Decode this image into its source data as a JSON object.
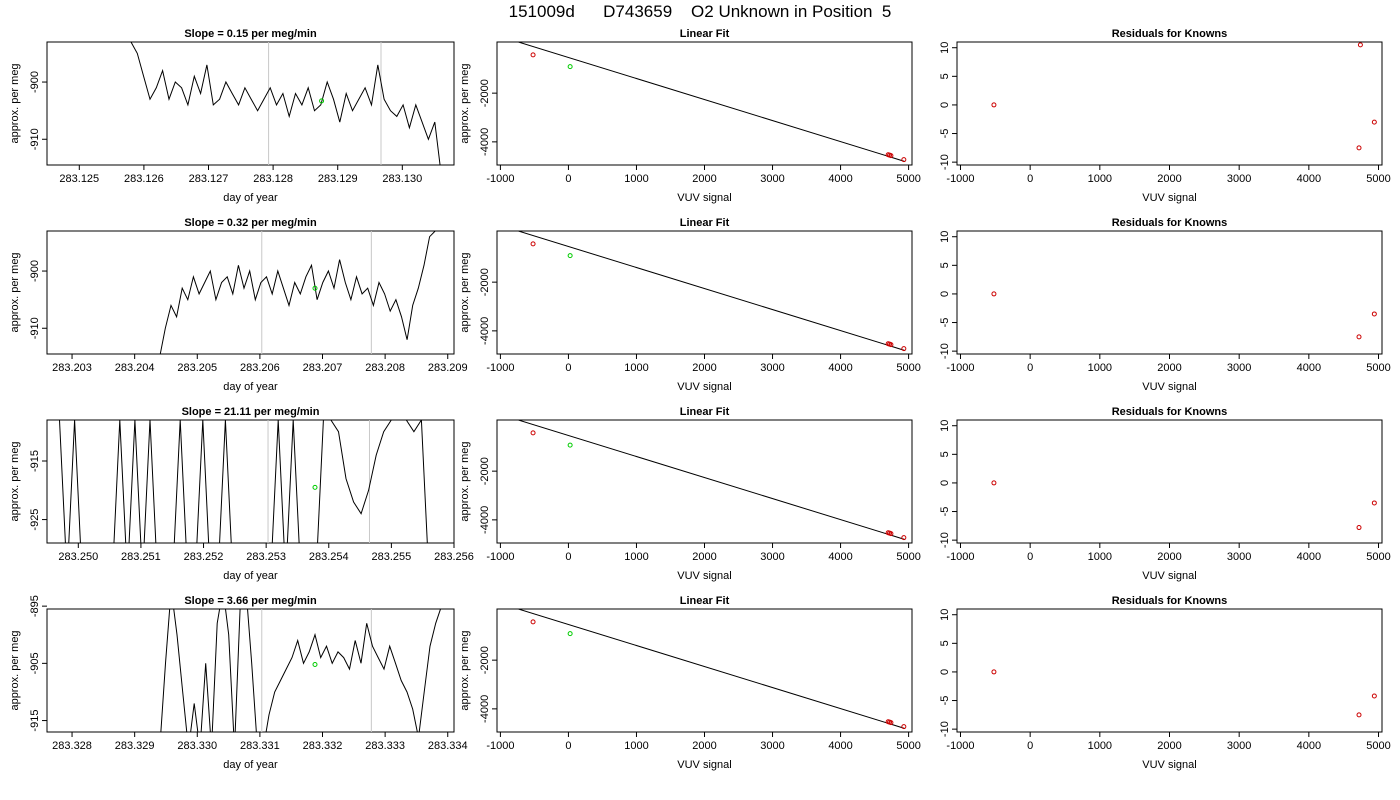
{
  "page_title": "151009d      D743659    O2 Unknown in Position  5",
  "chart_data": [
    {
      "type": "line",
      "row": 0,
      "panel": "trace",
      "title": "Slope =  0.15  per meg/min",
      "xlabel": "day of year",
      "ylabel": "approx. per meg",
      "xlim": [
        283.1245,
        283.1308
      ],
      "ylim": [
        -914.5,
        -893
      ],
      "xticks": [
        "283.125",
        "283.126",
        "283.127",
        "283.128",
        "283.129",
        "283.130"
      ],
      "xtick_values": [
        283.125,
        283.126,
        283.127,
        283.128,
        283.129,
        283.13
      ],
      "yticks": [
        "-900",
        "-910"
      ],
      "ytick_values": [
        -900,
        -910
      ],
      "vlines": [
        283.12793,
        283.12967
      ],
      "marker": {
        "x": 283.12875,
        "y": -903.3,
        "color": "#00cc00"
      },
      "trace": {
        "x0": 283.1258,
        "x1": 283.1306,
        "y": [
          -893,
          -895,
          -899,
          -903,
          -901,
          -898,
          -903,
          -900,
          -901,
          -904,
          -899,
          -902,
          -897,
          -904,
          -903,
          -900,
          -902,
          -904,
          -901,
          -903,
          -905,
          -903,
          -901,
          -904,
          -902,
          -906,
          -902,
          -904,
          -901,
          -905,
          -904,
          -900,
          -903,
          -907,
          -902,
          -905,
          -903,
          -901,
          -904,
          -897,
          -903,
          -905,
          -906,
          -904,
          -908,
          -904,
          -907,
          -910,
          -907,
          -916
        ]
      }
    },
    {
      "type": "line",
      "row": 0,
      "panel": "fit",
      "title": "Linear Fit",
      "xlabel": "VUV signal",
      "ylabel": "approx. per meg",
      "xlim": [
        -1050,
        5050
      ],
      "ylim": [
        -4950,
        100
      ],
      "xticks": [
        "-1000",
        "0",
        "1000",
        "2000",
        "3000",
        "4000",
        "5000"
      ],
      "xtick_values": [
        -1000,
        0,
        1000,
        2000,
        3000,
        4000,
        5000
      ],
      "yticks": [
        "-2000",
        "-4000"
      ],
      "ytick_values": [
        -2000,
        -4000
      ],
      "fit_line": {
        "x": [
          -820,
          4950
        ],
        "y": [
          172,
          -4810
        ]
      },
      "knowns": {
        "x": [
          -520,
          4700,
          4720,
          4740,
          4930
        ],
        "y": [
          -427,
          -4528,
          -4545,
          -4565,
          -4731
        ]
      },
      "unknown": {
        "x": 25,
        "y": -910
      }
    },
    {
      "type": "scatter",
      "row": 0,
      "panel": "resid",
      "title": "Residuals for Knowns",
      "xlabel": "VUV signal",
      "ylabel": "",
      "xlim": [
        -1050,
        5050
      ],
      "ylim": [
        -10.5,
        11
      ],
      "xticks": [
        "-1000",
        "0",
        "1000",
        "2000",
        "3000",
        "4000",
        "5000"
      ],
      "xtick_values": [
        -1000,
        0,
        1000,
        2000,
        3000,
        4000,
        5000
      ],
      "yticks": [
        "-10",
        "-5",
        "0",
        "5",
        "10"
      ],
      "ytick_values": [
        -10,
        -5,
        0,
        5,
        10
      ],
      "points": {
        "x": [
          -520,
          4720,
          4740,
          4940
        ],
        "y": [
          0,
          -7.5,
          10.5,
          -3
        ]
      }
    },
    {
      "type": "line",
      "row": 1,
      "panel": "trace",
      "title": "Slope =  0.32  per meg/min",
      "xlabel": "day of year",
      "ylabel": "approx. per meg",
      "xlim": [
        283.2026,
        283.2091
      ],
      "ylim": [
        -914.5,
        -893
      ],
      "xticks": [
        "283.203",
        "283.204",
        "283.205",
        "283.206",
        "283.207",
        "283.208",
        "283.209"
      ],
      "xtick_values": [
        283.203,
        283.204,
        283.205,
        283.206,
        283.207,
        283.208,
        283.209
      ],
      "yticks": [
        "-900",
        "-910"
      ],
      "ytick_values": [
        -900,
        -910
      ],
      "vlines": [
        283.20603,
        283.20778
      ],
      "marker": {
        "x": 283.20688,
        "y": -903.0,
        "color": "#00cc00"
      },
      "trace": {
        "x0": 283.2044,
        "x1": 283.2088,
        "y": [
          -915,
          -910,
          -906,
          -908,
          -903,
          -905,
          -901,
          -904,
          -902,
          -900,
          -905,
          -902,
          -901,
          -904,
          -899,
          -903,
          -900,
          -905,
          -902,
          -901,
          -904,
          -900,
          -903,
          -906,
          -902,
          -904,
          -901,
          -899,
          -905,
          -902,
          -900,
          -903,
          -898,
          -902,
          -905,
          -901,
          -904,
          -903,
          -906,
          -902,
          -904,
          -907,
          -905,
          -908,
          -912,
          -906,
          -903,
          -899,
          -894,
          -893
        ]
      }
    },
    {
      "type": "line",
      "row": 1,
      "panel": "fit",
      "title": "Linear Fit",
      "xlabel": "VUV signal",
      "ylabel": "approx. per meg",
      "xlim": [
        -1050,
        5050
      ],
      "ylim": [
        -4950,
        100
      ],
      "xticks": [
        "-1000",
        "0",
        "1000",
        "2000",
        "3000",
        "4000",
        "5000"
      ],
      "xtick_values": [
        -1000,
        0,
        1000,
        2000,
        3000,
        4000,
        5000
      ],
      "yticks": [
        "-2000",
        "-4000"
      ],
      "ytick_values": [
        -2000,
        -4000
      ],
      "fit_line": {
        "x": [
          -820,
          4950
        ],
        "y": [
          172,
          -4810
        ]
      },
      "knowns": {
        "x": [
          -520,
          4700,
          4720,
          4740,
          4930
        ],
        "y": [
          -427,
          -4528,
          -4545,
          -4565,
          -4731
        ]
      },
      "unknown": {
        "x": 25,
        "y": -910
      }
    },
    {
      "type": "scatter",
      "row": 1,
      "panel": "resid",
      "title": "Residuals for Knowns",
      "xlabel": "VUV signal",
      "ylabel": "",
      "xlim": [
        -1050,
        5050
      ],
      "ylim": [
        -10.5,
        11
      ],
      "xticks": [
        "-1000",
        "0",
        "1000",
        "2000",
        "3000",
        "4000",
        "5000"
      ],
      "xtick_values": [
        -1000,
        0,
        1000,
        2000,
        3000,
        4000,
        5000
      ],
      "yticks": [
        "-10",
        "-5",
        "0",
        "5",
        "10"
      ],
      "ytick_values": [
        -10,
        -5,
        0,
        5,
        10
      ],
      "points": {
        "x": [
          -520,
          4720,
          4940
        ],
        "y": [
          0,
          -7.5,
          -3.5
        ]
      }
    },
    {
      "type": "line",
      "row": 2,
      "panel": "trace",
      "title": "Slope =  21.11  per meg/min",
      "xlabel": "day of year",
      "ylabel": "approx. per meg",
      "xlim": [
        283.2495,
        283.256
      ],
      "ylim": [
        -929,
        -908
      ],
      "xticks": [
        "283.250",
        "283.251",
        "283.252",
        "283.253",
        "283.254",
        "283.255",
        "283.256"
      ],
      "xtick_values": [
        283.25,
        283.251,
        283.252,
        283.253,
        283.254,
        283.255,
        283.256
      ],
      "yticks": [
        "-915",
        "-925"
      ],
      "ytick_values": [
        -915,
        -925
      ],
      "vlines": [
        283.25303,
        283.25465
      ],
      "marker": {
        "x": 283.25378,
        "y": -919.5,
        "color": "#00cc00"
      },
      "trace": {
        "x0": 283.2497,
        "x1": 283.2556,
        "y": [
          -908,
          -935,
          -908,
          -935,
          -935,
          -935,
          -935,
          -935,
          -908,
          -935,
          -908,
          -935,
          -908,
          -935,
          -935,
          -935,
          -908,
          -935,
          -935,
          -908,
          -935,
          -935,
          -908,
          -935,
          -935,
          -935,
          -935,
          -935,
          -935,
          -908,
          -935,
          -908,
          -935,
          -935,
          -935,
          -908,
          -908,
          -910,
          -918,
          -922,
          -924,
          -920,
          -914,
          -910,
          -908,
          -908,
          -908,
          -910,
          -908,
          -935
        ]
      }
    },
    {
      "type": "line",
      "row": 2,
      "panel": "fit",
      "title": "Linear Fit",
      "xlabel": "VUV signal",
      "ylabel": "approx. per meg",
      "xlim": [
        -1050,
        5050
      ],
      "ylim": [
        -4950,
        100
      ],
      "xticks": [
        "-1000",
        "0",
        "1000",
        "2000",
        "3000",
        "4000",
        "5000"
      ],
      "xtick_values": [
        -1000,
        0,
        1000,
        2000,
        3000,
        4000,
        5000
      ],
      "yticks": [
        "-2000",
        "-4000"
      ],
      "ytick_values": [
        -2000,
        -4000
      ],
      "fit_line": {
        "x": [
          -820,
          4950
        ],
        "y": [
          172,
          -4810
        ]
      },
      "knowns": {
        "x": [
          -520,
          4700,
          4720,
          4740,
          4930
        ],
        "y": [
          -427,
          -4528,
          -4545,
          -4565,
          -4731
        ]
      },
      "unknown": {
        "x": 25,
        "y": -930
      }
    },
    {
      "type": "scatter",
      "row": 2,
      "panel": "resid",
      "title": "Residuals for Knowns",
      "xlabel": "VUV signal",
      "ylabel": "",
      "xlim": [
        -1050,
        5050
      ],
      "ylim": [
        -10.5,
        11
      ],
      "xticks": [
        "-1000",
        "0",
        "1000",
        "2000",
        "3000",
        "4000",
        "5000"
      ],
      "xtick_values": [
        -1000,
        0,
        1000,
        2000,
        3000,
        4000,
        5000
      ],
      "yticks": [
        "-10",
        "-5",
        "0",
        "5",
        "10"
      ],
      "ytick_values": [
        -10,
        -5,
        0,
        5,
        10
      ],
      "points": {
        "x": [
          -520,
          4720,
          4940
        ],
        "y": [
          0,
          -7.8,
          -3.5
        ]
      }
    },
    {
      "type": "line",
      "row": 3,
      "panel": "trace",
      "title": "Slope =  3.66  per meg/min",
      "xlabel": "day of year",
      "ylabel": "approx. per meg",
      "xlim": [
        283.3276,
        283.3341
      ],
      "ylim": [
        -917,
        -895.5
      ],
      "xticks": [
        "283.328",
        "283.329",
        "283.330",
        "283.331",
        "283.332",
        "283.333",
        "283.334"
      ],
      "xtick_values": [
        283.328,
        283.329,
        283.33,
        283.331,
        283.332,
        283.333,
        283.334
      ],
      "yticks": [
        "-895",
        "-905",
        "-915"
      ],
      "ytick_values": [
        -895,
        -905,
        -915
      ],
      "vlines": [
        283.33103,
        283.33278
      ],
      "marker": {
        "x": 283.33188,
        "y": -905.2,
        "color": "#00cc00"
      },
      "trace": {
        "x0": 283.3294,
        "x1": 283.3339,
        "y": [
          -920,
          -905,
          -892,
          -900,
          -910,
          -920,
          -912,
          -920,
          -905,
          -920,
          -898,
          -892,
          -900,
          -920,
          -895,
          -892,
          -905,
          -920,
          -920,
          -914,
          -910,
          -908,
          -906,
          -904,
          -901,
          -905,
          -903,
          -900,
          -904,
          -902,
          -905,
          -903,
          -904,
          -906,
          -901,
          -905,
          -898,
          -902,
          -904,
          -906,
          -902,
          -905,
          -908,
          -910,
          -913,
          -918,
          -910,
          -902,
          -898,
          -895
        ]
      }
    },
    {
      "type": "line",
      "row": 3,
      "panel": "fit",
      "title": "Linear Fit",
      "xlabel": "VUV signal",
      "ylabel": "approx. per meg",
      "xlim": [
        -1050,
        5050
      ],
      "ylim": [
        -4950,
        100
      ],
      "xticks": [
        "-1000",
        "0",
        "1000",
        "2000",
        "3000",
        "4000",
        "5000"
      ],
      "xtick_values": [
        -1000,
        0,
        1000,
        2000,
        3000,
        4000,
        5000
      ],
      "yticks": [
        "-2000",
        "-4000"
      ],
      "ytick_values": [
        -2000,
        -4000
      ],
      "fit_line": {
        "x": [
          -820,
          4950
        ],
        "y": [
          172,
          -4810
        ]
      },
      "knowns": {
        "x": [
          -520,
          4700,
          4720,
          4740,
          4930
        ],
        "y": [
          -427,
          -4528,
          -4545,
          -4565,
          -4731
        ]
      },
      "unknown": {
        "x": 25,
        "y": -910
      }
    },
    {
      "type": "scatter",
      "row": 3,
      "panel": "resid",
      "title": "Residuals for Knowns",
      "xlabel": "VUV signal",
      "ylabel": "",
      "xlim": [
        -1050,
        5050
      ],
      "ylim": [
        -10.5,
        11
      ],
      "xticks": [
        "-1000",
        "0",
        "1000",
        "2000",
        "3000",
        "4000",
        "5000"
      ],
      "xtick_values": [
        -1000,
        0,
        1000,
        2000,
        3000,
        4000,
        5000
      ],
      "yticks": [
        "-10",
        "-5",
        "0",
        "5",
        "10"
      ],
      "ytick_values": [
        -10,
        -5,
        0,
        5,
        10
      ],
      "points": {
        "x": [
          -520,
          4720,
          4940
        ],
        "y": [
          0,
          -7.5,
          -4.2
        ]
      }
    }
  ]
}
